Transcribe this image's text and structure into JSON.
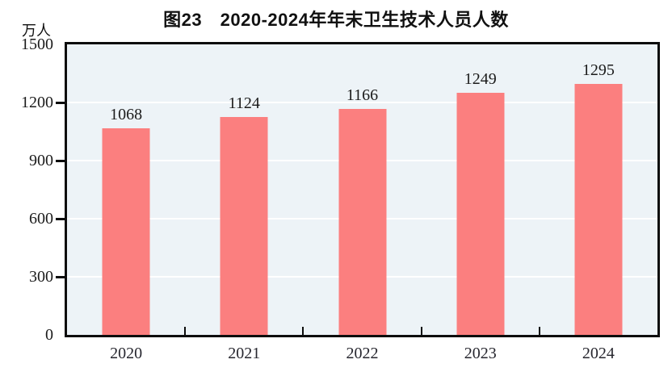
{
  "chart_data": {
    "type": "bar",
    "title": "图23　2020-2024年年末卫生技术人员人数",
    "unit_label": "万人",
    "categories": [
      "2020",
      "2021",
      "2022",
      "2023",
      "2024"
    ],
    "values": [
      1068,
      1124,
      1166,
      1249,
      1295
    ],
    "xlabel": "",
    "ylabel": "万人",
    "ylim": [
      0,
      1500
    ],
    "yticks": [
      0,
      300,
      600,
      900,
      1200,
      1500
    ],
    "grid": "horizontal-white-lines",
    "legend_position": "none",
    "data_labels": "above-bars",
    "colors": {
      "bar": "#fb7f7f",
      "plot_background": "#edf3f7",
      "axis_border": "#0d0d0d",
      "gridline": "#ffffff",
      "text": "#1b1b1b"
    }
  }
}
